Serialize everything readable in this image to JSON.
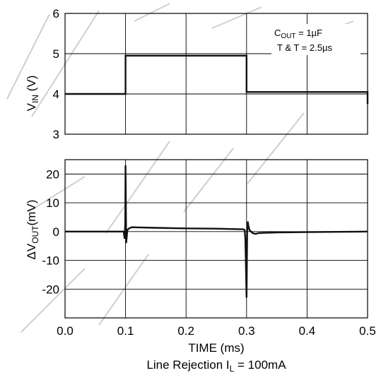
{
  "chart_data": {
    "type": "line",
    "caption_line1": "TIME (ms)",
    "caption_line2_main": "Line Rejection I",
    "caption_line2_sub": "L",
    "caption_line2_rest": " = 100mA",
    "xlim": [
      0.0,
      0.5
    ],
    "x_ticks": [
      "0.0",
      "0.1",
      "0.2",
      "0.3",
      "0.4",
      "0.5"
    ],
    "panels": [
      {
        "name": "vin",
        "ylabel_main": "V",
        "ylabel_sub": "IN",
        "ylabel_rest": " (V)",
        "ylim": [
          3,
          6
        ],
        "y_ticks": [
          "3",
          "4",
          "5",
          "6"
        ],
        "series": [
          {
            "x": [
              0.0,
              0.1,
              0.1,
              0.3,
              0.3,
              0.5,
              0.5
            ],
            "y": [
              4.0,
              4.0,
              4.95,
              4.95,
              4.05,
              4.05,
              3.75
            ]
          }
        ]
      },
      {
        "name": "vout",
        "ylabel_main": "ΔV",
        "ylabel_sub": "OUT",
        "ylabel_rest": "(mV)",
        "ylim": [
          -30,
          25
        ],
        "y_ticks": [
          "-20",
          "-10",
          "0",
          "10",
          "20"
        ],
        "y_tick_values": [
          -20,
          -10,
          0,
          10,
          20
        ],
        "series": [
          {
            "x": [
              0.0,
              0.097,
              0.0985,
              0.0995,
              0.1,
              0.101,
              0.103,
              0.105,
              0.11,
              0.15,
              0.2,
              0.25,
              0.295,
              0.297,
              0.298,
              0.3,
              0.301,
              0.302,
              0.303,
              0.305,
              0.31,
              0.315,
              0.32,
              0.35,
              0.4,
              0.45,
              0.5
            ],
            "y": [
              0.0,
              0.0,
              -2.5,
              3.0,
              23.0,
              -4.0,
              0.5,
              1.0,
              1.5,
              1.3,
              1.1,
              1.0,
              0.8,
              0.5,
              -2.5,
              -23.0,
              0.0,
              3.5,
              2.0,
              0.5,
              -0.5,
              -0.8,
              -0.5,
              -0.3,
              -0.2,
              -0.1,
              0.0
            ]
          }
        ]
      }
    ],
    "annotation_line1_main": "C",
    "annotation_line1_sub": "OUT",
    "annotation_line1_rest": " = 1µF",
    "annotation_line2": "T & T = 2.5µs"
  }
}
